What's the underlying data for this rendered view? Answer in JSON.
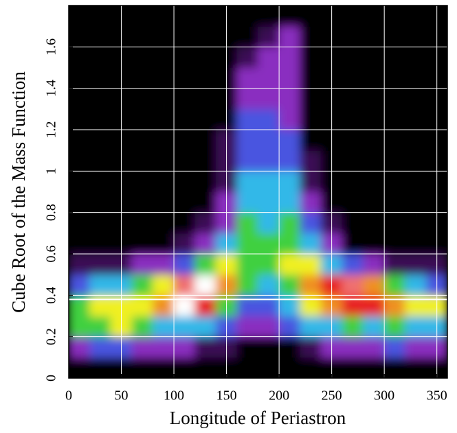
{
  "chart_data": {
    "type": "density",
    "xlabel": "Longitude of Periastron",
    "ylabel": "Cube Root of the Mass Function",
    "xlim": [
      0,
      360
    ],
    "ylim": [
      0,
      1.8
    ],
    "xticks": [
      0,
      50,
      100,
      150,
      200,
      250,
      300,
      350
    ],
    "yticks": [
      0,
      0.2,
      0.4,
      0.6,
      0.8,
      1,
      1.2,
      1.4,
      1.6
    ],
    "grid": true,
    "reference_lines": [
      0.38
    ],
    "colorscale": [
      "#000000",
      "#3a0a55",
      "#8a2fc0",
      "#4a55e0",
      "#30b8e8",
      "#40d040",
      "#f0f020",
      "#f09020",
      "#e82020",
      "#f07070",
      "#ffffff"
    ],
    "xbins": [
      0,
      20,
      40,
      60,
      80,
      100,
      120,
      140,
      160,
      180,
      200,
      220,
      240,
      260,
      280,
      300,
      320,
      340,
      360
    ],
    "ybins": [
      0,
      0.1,
      0.2,
      0.3,
      0.4,
      0.5,
      0.6,
      0.7,
      0.8,
      0.9,
      1,
      1.1,
      1.2,
      1.3,
      1.4,
      1.5,
      1.6,
      1.7,
      1.8
    ],
    "values": [
      [
        0,
        0,
        0,
        0,
        0,
        0,
        0,
        0,
        0,
        0,
        0,
        0,
        0,
        0,
        0,
        0,
        0,
        0
      ],
      [
        2,
        3,
        3,
        2,
        2,
        2,
        1,
        1,
        0,
        0,
        0,
        1,
        2,
        2,
        2,
        3,
        2,
        2
      ],
      [
        5,
        5,
        6,
        5,
        4,
        4,
        4,
        3,
        2,
        2,
        3,
        4,
        4,
        5,
        4,
        5,
        4,
        4
      ],
      [
        5,
        6,
        6,
        6,
        7,
        10,
        8,
        5,
        3,
        3,
        4,
        6,
        7,
        8,
        8,
        7,
        6,
        6
      ],
      [
        3,
        4,
        4,
        5,
        6,
        9,
        10,
        7,
        5,
        4,
        5,
        7,
        8,
        9,
        7,
        5,
        4,
        3
      ],
      [
        1,
        1,
        1,
        2,
        2,
        3,
        5,
        6,
        5,
        5,
        6,
        6,
        4,
        3,
        2,
        1,
        1,
        1
      ],
      [
        0,
        0,
        0,
        0,
        0,
        1,
        2,
        4,
        5,
        5,
        5,
        4,
        2,
        0,
        0,
        0,
        0,
        0
      ],
      [
        0,
        0,
        0,
        0,
        0,
        0,
        1,
        2,
        5,
        4,
        5,
        3,
        1,
        0,
        0,
        0,
        0,
        0
      ],
      [
        0,
        0,
        0,
        0,
        0,
        0,
        0,
        2,
        4,
        4,
        4,
        2,
        0,
        0,
        0,
        0,
        0,
        0
      ],
      [
        0,
        0,
        0,
        0,
        0,
        0,
        0,
        1,
        4,
        4,
        4,
        1,
        0,
        0,
        0,
        0,
        0,
        0
      ],
      [
        0,
        0,
        0,
        0,
        0,
        0,
        0,
        1,
        3,
        3,
        3,
        1,
        0,
        0,
        0,
        0,
        0,
        0
      ],
      [
        0,
        0,
        0,
        0,
        0,
        0,
        0,
        1,
        3,
        3,
        3,
        0,
        0,
        0,
        0,
        0,
        0,
        0
      ],
      [
        0,
        0,
        0,
        0,
        0,
        0,
        0,
        0,
        3,
        3,
        2,
        0,
        0,
        0,
        0,
        0,
        0,
        0
      ],
      [
        0,
        0,
        0,
        0,
        0,
        0,
        0,
        0,
        2,
        2,
        2,
        0,
        0,
        0,
        0,
        0,
        0,
        0
      ],
      [
        0,
        0,
        0,
        0,
        0,
        0,
        0,
        0,
        2,
        2,
        2,
        0,
        0,
        0,
        0,
        0,
        0,
        0
      ],
      [
        0,
        0,
        0,
        0,
        0,
        0,
        0,
        0,
        1,
        2,
        2,
        0,
        0,
        0,
        0,
        0,
        0,
        0
      ],
      [
        0,
        0,
        0,
        0,
        0,
        0,
        0,
        0,
        0,
        1,
        2,
        0,
        0,
        0,
        0,
        0,
        0,
        0
      ],
      [
        0,
        0,
        0,
        0,
        0,
        0,
        0,
        0,
        0,
        0,
        0,
        0,
        0,
        0,
        0,
        0,
        0,
        0
      ]
    ]
  }
}
